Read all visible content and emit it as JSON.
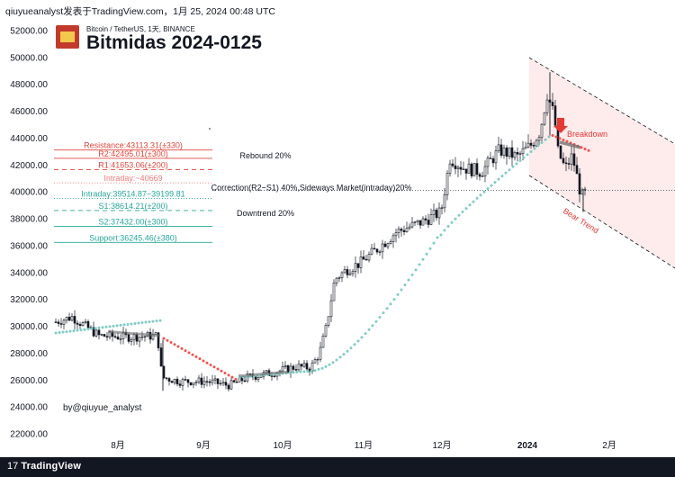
{
  "header": {
    "text": "qiuyueanalyst发表于TradingView.com，1月 25, 2024 00:48 UTC"
  },
  "chart_info": {
    "symbol_line": "Bitcoin / TetherUS, 1天, BINANCE",
    "title": "Bitmidas 2024-0125",
    "author": "by@qiuyue_analyst"
  },
  "footer": {
    "brand": "TradingView"
  },
  "colors": {
    "resistance": "#e0463c",
    "support": "#26a69a",
    "intraday_red": "#f27b7b",
    "intraday_green": "#26a69a",
    "sar_up": "#80cbc4",
    "sar_down": "#ef5350",
    "channel_fill": "#fde2e2",
    "arrow": "#e53935",
    "candle": "#131722"
  },
  "chart_data": {
    "type": "candlestick",
    "y_axis": {
      "ticks": [
        "52000.00",
        "50000.00",
        "48000.00",
        "46000.00",
        "44000.00",
        "42000.00",
        "40000.00",
        "38000.00",
        "36000.00",
        "34000.00",
        "32000.00",
        "30000.00",
        "28000.00",
        "26000.00",
        "24000.00",
        "22000.00"
      ],
      "range": [
        22000,
        52000
      ]
    },
    "x_axis": {
      "ticks": [
        "8月",
        "9月",
        "10月",
        "11月",
        "12月",
        "2024",
        "2月"
      ]
    },
    "levels": [
      {
        "label": "Resistance:43113.31(±330)",
        "value": 43113,
        "color": "#e0463c",
        "style": "solid"
      },
      {
        "label": "R2:42495.01(±300)",
        "value": 42495,
        "color": "#e0463c",
        "style": "solid"
      },
      {
        "label": "R1:41653.06(±200)",
        "value": 41653,
        "color": "#e0463c",
        "style": "dashed"
      },
      {
        "label": "Intraday:~40669",
        "value": 40669,
        "color": "#f27b7b",
        "style": "dotted"
      },
      {
        "label": "Intraday:39514.87~39199.81",
        "value": 39514,
        "color": "#26a69a",
        "style": "dotted"
      },
      {
        "label": "S1:38614.21(±200)",
        "value": 38614,
        "color": "#26a69a",
        "style": "dashed"
      },
      {
        "label": "S2:37432.00(±300)",
        "value": 37432,
        "color": "#26a69a",
        "style": "solid"
      },
      {
        "label": "Support:36245.46(±380)",
        "value": 36245,
        "color": "#26a69a",
        "style": "solid"
      }
    ],
    "scenarios": [
      {
        "label": "Rebound  20%",
        "value": 42500
      },
      {
        "label": "Correction(R2~S1) 40%,Sideways Market(intraday)20%",
        "value": 40100
      },
      {
        "label": "Downtrend  20%",
        "value": 38200
      }
    ],
    "annotations": [
      {
        "label": "Breakdown",
        "color": "#e53935"
      },
      {
        "label": "Bear Trend",
        "color": "#e53935"
      }
    ],
    "last_price": 40100
  }
}
